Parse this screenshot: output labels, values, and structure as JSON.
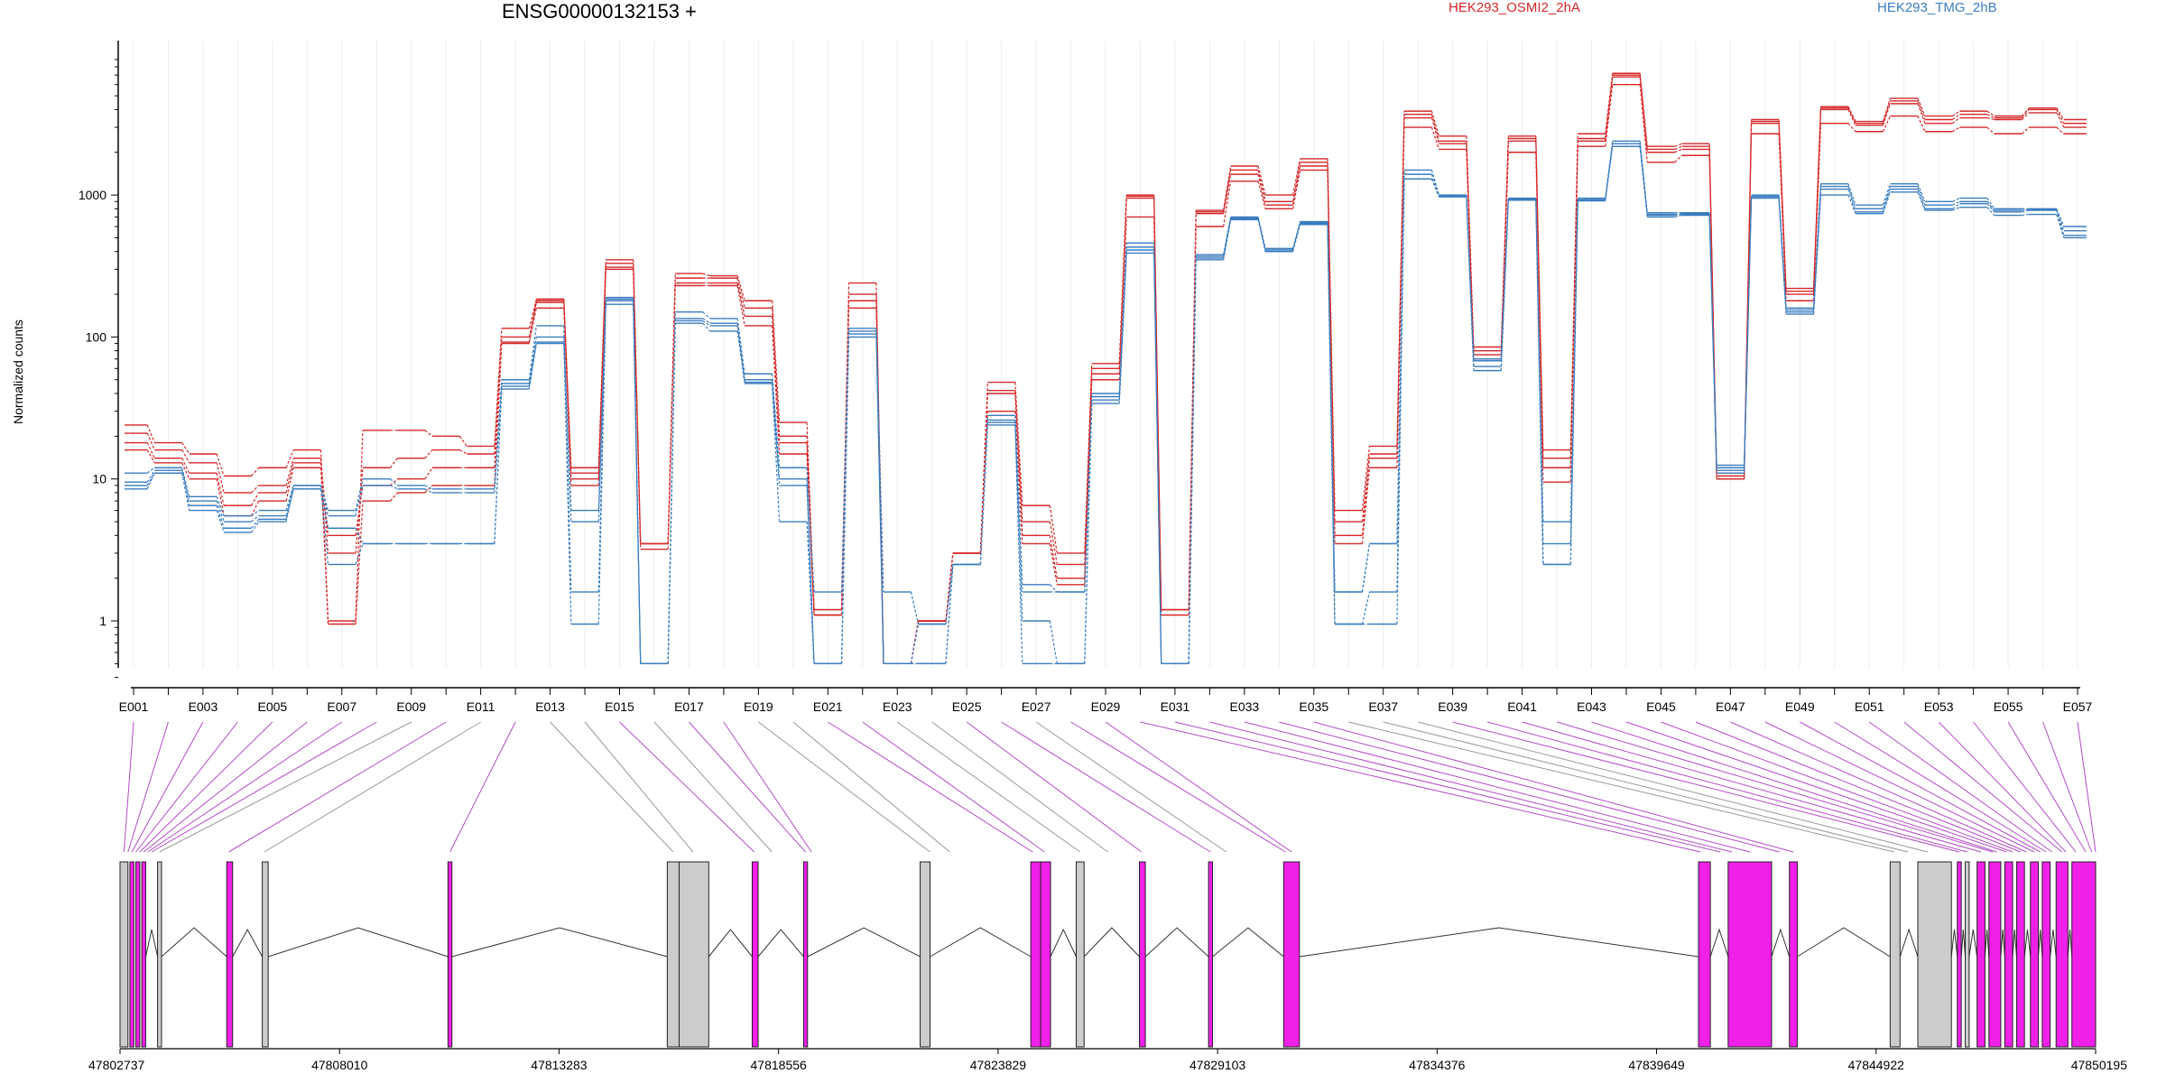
{
  "chart_data": {
    "type": "line",
    "title": "ENSG00000132153 +",
    "ylabel": "Normalized counts",
    "yscale": "log",
    "ylim": [
      0.4,
      9000
    ],
    "yticks": [
      "1",
      "10",
      "100",
      "1000"
    ],
    "exons": [
      "E001",
      "E002",
      "E003",
      "E004",
      "E005",
      "E006",
      "E007",
      "E008",
      "E009",
      "E010",
      "E011",
      "E012",
      "E013",
      "E014",
      "E015",
      "E016",
      "E017",
      "E018",
      "E019",
      "E020",
      "E021",
      "E022",
      "E023",
      "E024",
      "E025",
      "E026",
      "E027",
      "E028",
      "E029",
      "E030",
      "E031",
      "E032",
      "E033",
      "E034",
      "E035",
      "E036",
      "E037",
      "E038",
      "E039",
      "E040",
      "E041",
      "E042",
      "E043",
      "E044",
      "E045",
      "E046",
      "E047",
      "E048",
      "E049",
      "E050",
      "E051",
      "E052",
      "E053",
      "E054",
      "E055",
      "E056",
      "E057"
    ],
    "xtick_labels": [
      "E001",
      "E003",
      "E005",
      "E007",
      "E009",
      "E011",
      "E013",
      "E015",
      "E017",
      "E019",
      "E021",
      "E023",
      "E025",
      "E027",
      "E029",
      "E031",
      "E033",
      "E035",
      "E037",
      "E039",
      "E041",
      "E043",
      "E045",
      "E047",
      "E049",
      "E051",
      "E053",
      "E055",
      "E057"
    ],
    "legend": [
      "HEK293_OSMI2_2hA",
      "HEK293_TMG_2hB"
    ],
    "legend_colors": [
      "#d62728",
      "#3a7dbf"
    ],
    "series": [
      {
        "name": "HEK293_OSMI2_2hA",
        "color": "#d62728",
        "values": [
          24,
          18,
          15,
          10.5,
          12,
          16,
          1,
          22,
          22,
          20,
          17,
          115,
          185,
          12,
          350,
          3.5,
          280,
          270,
          180,
          25,
          1.2,
          240,
          0.5,
          1,
          3,
          48,
          6.5,
          3,
          65,
          1000,
          1.2,
          780,
          1600,
          1000,
          1800,
          6,
          17,
          3900,
          2600,
          85,
          2600,
          16,
          2700,
          7200,
          2200,
          2300,
          11,
          3400,
          220,
          4200,
          3300,
          4800,
          3600,
          3900,
          3600,
          4100,
          3400
        ]
      },
      {
        "name": "HEK293_OSMI2_2hA",
        "color": "#d62728",
        "values": [
          21,
          16,
          13,
          8,
          9,
          14,
          3,
          12,
          14,
          16,
          15,
          100,
          175,
          10,
          330,
          3.5,
          260,
          260,
          160,
          20,
          1.2,
          200,
          0.5,
          1,
          3,
          42,
          5,
          2.5,
          60,
          980,
          1.2,
          760,
          1500,
          900,
          1700,
          5,
          15,
          3700,
          2400,
          80,
          2500,
          14,
          2500,
          7000,
          2100,
          2200,
          10,
          3300,
          210,
          4100,
          3200,
          4600,
          3400,
          3700,
          3500,
          4000,
          3200
        ]
      },
      {
        "name": "HEK293_OSMI2_2hA",
        "color": "#d62728",
        "values": [
          18,
          14,
          11,
          6.5,
          8,
          13,
          4,
          9,
          10,
          12,
          12,
          92,
          160,
          9,
          310,
          3.5,
          240,
          240,
          140,
          18,
          1.1,
          180,
          0.5,
          1,
          3,
          40,
          4,
          2,
          55,
          950,
          1.2,
          740,
          1400,
          850,
          1600,
          4,
          14,
          3500,
          2300,
          75,
          2400,
          12,
          2400,
          6800,
          2000,
          2100,
          10,
          3200,
          200,
          4000,
          3100,
          4400,
          3200,
          3500,
          3400,
          3800,
          3000
        ]
      },
      {
        "name": "HEK293_OSMI2_2hA",
        "color": "#d62728",
        "values": [
          16,
          13,
          10,
          5.5,
          7,
          12,
          0.95,
          7,
          8,
          9,
          9,
          90,
          180,
          11,
          300,
          3.2,
          230,
          230,
          120,
          15,
          1.1,
          160,
          0.5,
          1,
          3,
          30,
          3.5,
          1.8,
          50,
          700,
          1.1,
          600,
          1250,
          800,
          1500,
          3.5,
          12,
          3000,
          2100,
          70,
          2000,
          9.5,
          2200,
          6000,
          1700,
          1900,
          10.5,
          2700,
          180,
          3200,
          2800,
          3600,
          2800,
          3000,
          2700,
          3000,
          2700
        ]
      },
      {
        "name": "HEK293_TMG_2hB",
        "color": "#3a7dbf",
        "values": [
          11,
          12,
          7.5,
          5.5,
          6,
          9,
          6,
          10,
          9,
          8.5,
          8.5,
          50,
          120,
          1.6,
          190,
          0.5,
          150,
          135,
          55,
          12,
          1.6,
          115,
          1.6,
          0.95,
          2.5,
          28,
          1.8,
          1.6,
          40,
          460,
          0.5,
          380,
          700,
          420,
          650,
          1.6,
          3.5,
          1500,
          1000,
          70,
          950,
          5,
          950,
          2400,
          750,
          750,
          12.5,
          1000,
          160,
          1200,
          850,
          1200,
          900,
          950,
          800,
          800,
          600
        ]
      },
      {
        "name": "HEK293_TMG_2hB",
        "color": "#3a7dbf",
        "values": [
          9.5,
          11.5,
          7,
          5,
          5.5,
          9,
          5.5,
          9,
          8.5,
          8,
          8,
          47,
          100,
          6,
          185,
          0.5,
          135,
          125,
          50,
          10,
          0.5,
          110,
          0.5,
          0.95,
          2.5,
          26,
          1.6,
          1.6,
          38,
          430,
          0.5,
          370,
          690,
          410,
          640,
          1.6,
          3.5,
          1400,
          990,
          68,
          940,
          3.5,
          930,
          2300,
          730,
          740,
          12,
          980,
          155,
          1150,
          800,
          1150,
          850,
          900,
          780,
          790,
          560
        ]
      },
      {
        "name": "HEK293_TMG_2hB",
        "color": "#3a7dbf",
        "values": [
          9,
          11,
          6.5,
          4.5,
          5.2,
          8.5,
          4.5,
          3.5,
          3.5,
          3.5,
          3.5,
          45,
          92,
          5,
          180,
          0.5,
          130,
          120,
          48,
          9,
          0.5,
          105,
          0.5,
          0.5,
          2.5,
          25,
          1,
          0.5,
          36,
          410,
          0.5,
          360,
          680,
          400,
          630,
          0.95,
          1.6,
          1300,
          980,
          62,
          930,
          2.5,
          920,
          2200,
          720,
          730,
          11.5,
          960,
          150,
          1100,
          760,
          1100,
          800,
          870,
          760,
          780,
          520
        ]
      },
      {
        "name": "HEK293_TMG_2hB",
        "color": "#3a7dbf",
        "values": [
          8.5,
          11,
          6,
          4.2,
          5,
          8.5,
          2.5,
          3.5,
          3.5,
          3.5,
          3.5,
          43,
          90,
          0.95,
          170,
          0.5,
          125,
          110,
          47,
          5,
          0.5,
          100,
          0.5,
          0.5,
          2.5,
          24,
          0.5,
          0.5,
          34,
          390,
          0.5,
          350,
          670,
          400,
          620,
          0.95,
          0.95,
          1300,
          970,
          58,
          920,
          2.5,
          910,
          2200,
          700,
          720,
          11,
          950,
          145,
          1000,
          740,
          1050,
          780,
          820,
          720,
          730,
          500
        ]
      }
    ],
    "genomic_ticks": [
      "47802737",
      "47808010",
      "47813283",
      "47818556",
      "47823829",
      "47829103",
      "47834376",
      "47839649",
      "47844922",
      "47850195"
    ]
  },
  "colors": {
    "significant_exon": "#f020e8",
    "other_exon": "#cccccc",
    "connector_sig": "#b44bc8",
    "connector_other": "#999999"
  }
}
